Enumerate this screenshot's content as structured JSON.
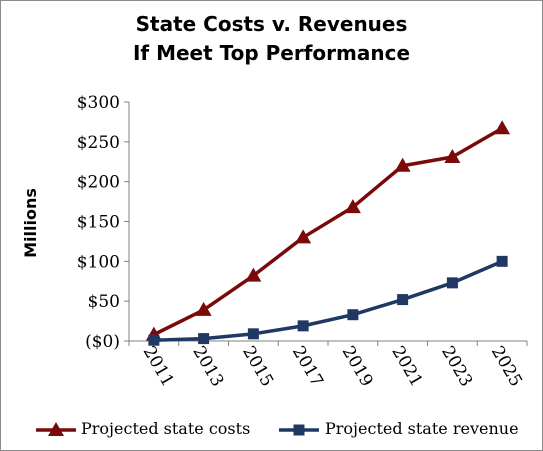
{
  "chart_data": {
    "type": "line",
    "title": "State Costs v. Revenues",
    "subtitle": "If Meet Top Performance",
    "ylabel": "Millions",
    "xlabel": "",
    "x": [
      "2011",
      "2013",
      "2015",
      "2017",
      "2019",
      "2021",
      "2023",
      "2025"
    ],
    "ylim": [
      0,
      300
    ],
    "y_ticks": [
      0,
      50,
      100,
      150,
      200,
      250,
      300
    ],
    "y_tick_labels": [
      "($0)",
      "$50",
      "$100",
      "$150",
      "$200",
      "$250",
      "$300"
    ],
    "grid": false,
    "legend_position": "bottom",
    "series": [
      {
        "name": "Projected state costs",
        "values": [
          8,
          39,
          82,
          130,
          168,
          220,
          231,
          267
        ],
        "color": "#7a0a0a",
        "marker": "triangle"
      },
      {
        "name": "Projected state revenue",
        "values": [
          1,
          3,
          9,
          19,
          33,
          52,
          73,
          100
        ],
        "color": "#1f3864",
        "marker": "square"
      }
    ]
  }
}
